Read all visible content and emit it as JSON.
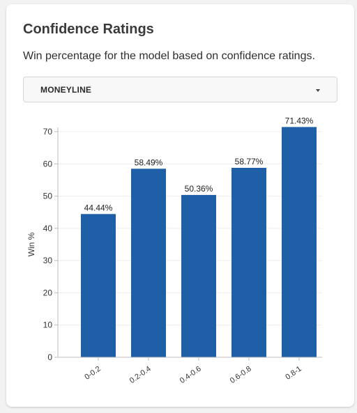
{
  "header": {
    "title": "Confidence Ratings",
    "subtitle": "Win percentage for the model based on confidence ratings."
  },
  "market_select": {
    "value": "MONEYLINE"
  },
  "colors": {
    "bar": "#1f5fa8",
    "grid": "#ececec",
    "axis": "#bdbdbd"
  },
  "chart_data": {
    "type": "bar",
    "title": "",
    "xlabel": "",
    "ylabel": "Win %",
    "categories": [
      "0-0.2",
      "0.2-0.4",
      "0.4-0.6",
      "0.6-0.8",
      "0.8-1"
    ],
    "values": [
      44.44,
      58.49,
      50.36,
      58.77,
      71.43
    ],
    "data_labels": [
      "44.44%",
      "58.49%",
      "50.36%",
      "58.77%",
      "71.43%"
    ],
    "ylim": [
      0,
      70
    ],
    "yticks": [
      0,
      10,
      20,
      30,
      40,
      50,
      60,
      70
    ],
    "grid": true,
    "legend": "none"
  }
}
